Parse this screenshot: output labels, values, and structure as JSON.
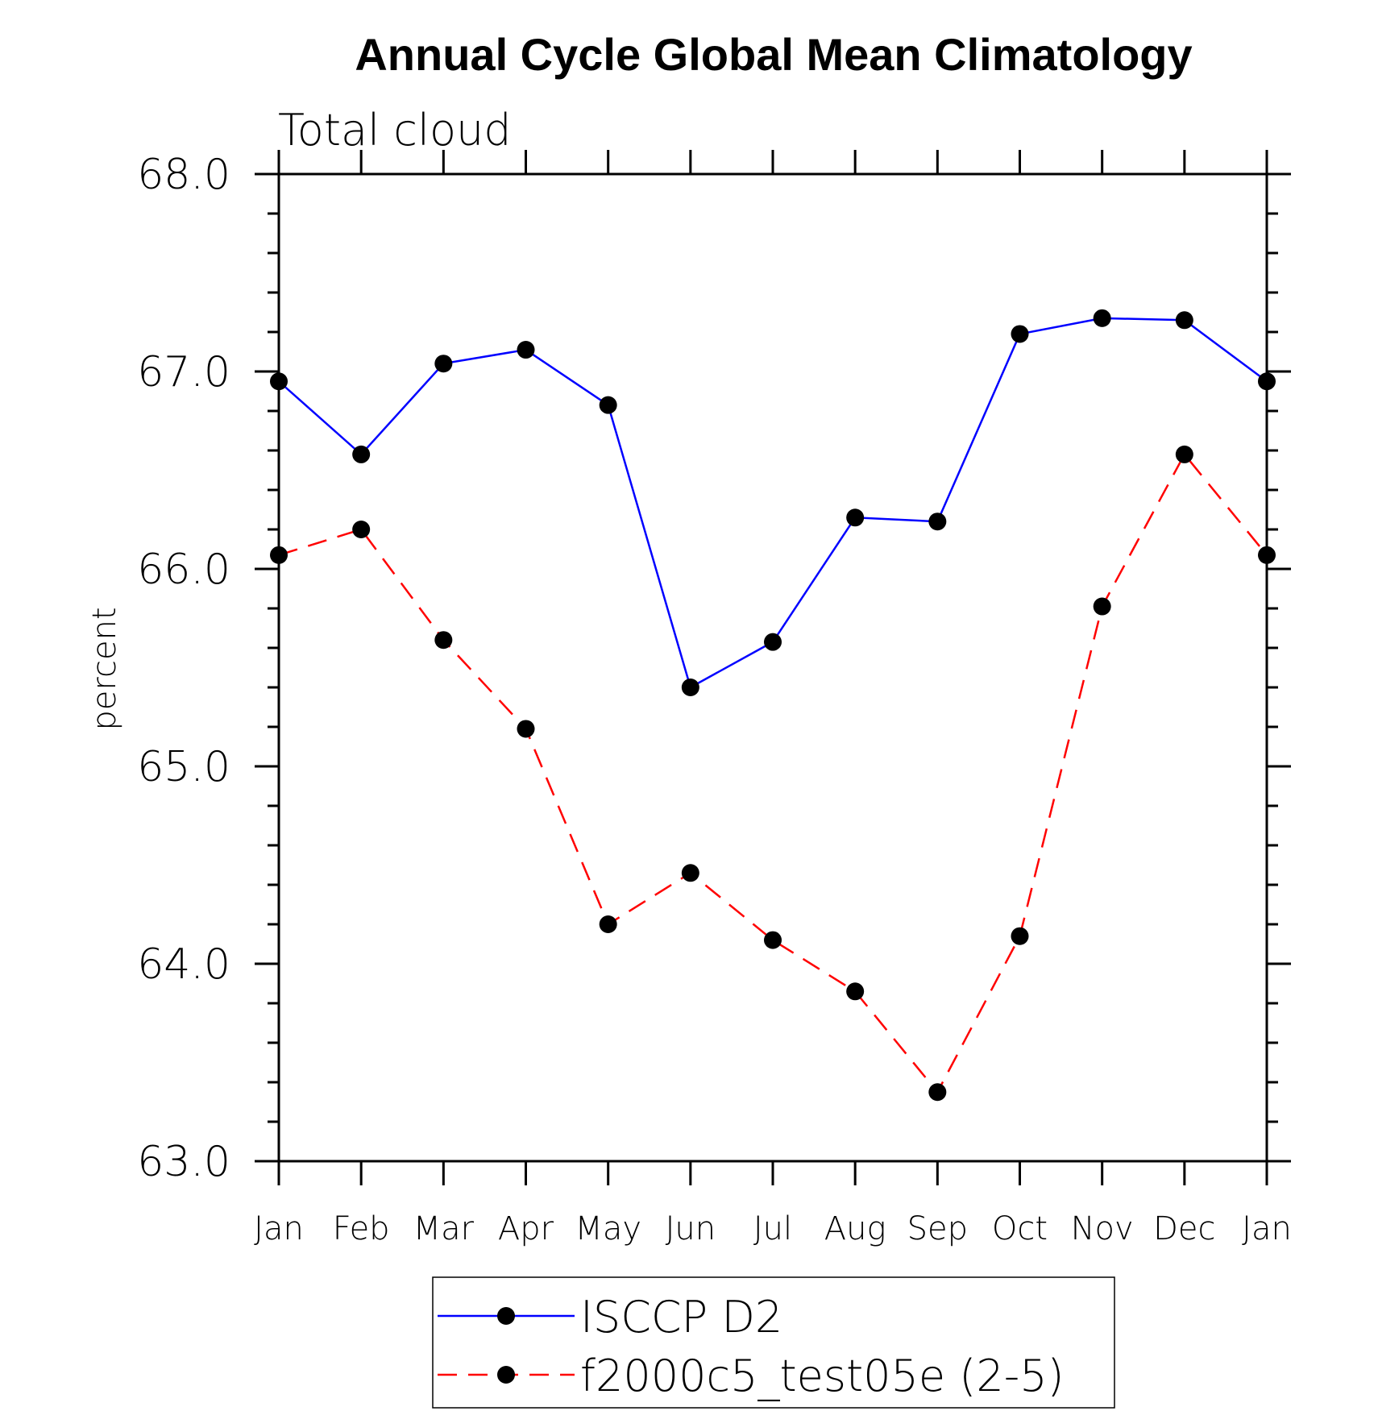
{
  "chart_data": {
    "type": "line",
    "title": "Annual Cycle Global Mean Climatology",
    "subtitle": "Total cloud",
    "ylabel": "percent",
    "xlabel": "",
    "categories": [
      "Jan",
      "Feb",
      "Mar",
      "Apr",
      "May",
      "Jun",
      "Jul",
      "Aug",
      "Sep",
      "Oct",
      "Nov",
      "Dec",
      "Jan"
    ],
    "ylim": [
      63.0,
      68.0
    ],
    "yticks": [
      "63.0",
      "64.0",
      "65.0",
      "66.0",
      "67.0",
      "68.0"
    ],
    "grid": false,
    "legend_position": "bottom",
    "series": [
      {
        "name": "ISCCP D2",
        "color": "#0000ff",
        "dash": "solid",
        "marker": "filled-circle",
        "values": [
          66.95,
          66.58,
          67.04,
          67.11,
          66.83,
          65.4,
          65.63,
          66.26,
          66.24,
          67.19,
          67.27,
          67.26,
          66.95
        ]
      },
      {
        "name": "f2000c5_test05e (2-5)",
        "color": "#ff0000",
        "dash": "dashed",
        "marker": "filled-circle",
        "values": [
          66.07,
          66.2,
          65.64,
          65.19,
          64.2,
          64.46,
          64.12,
          63.86,
          63.35,
          64.14,
          65.81,
          66.58,
          66.07
        ]
      }
    ]
  }
}
